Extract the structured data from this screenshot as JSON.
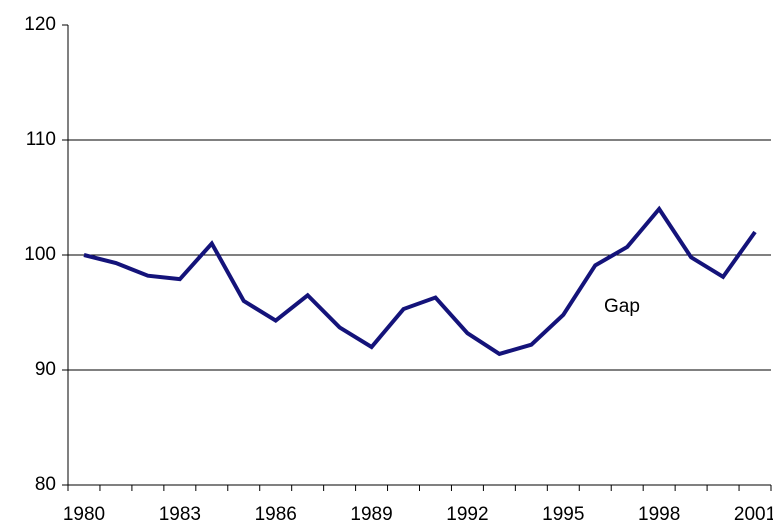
{
  "chart_data": {
    "type": "line",
    "categories": [
      "1980",
      null,
      null,
      "1983",
      null,
      null,
      "1986",
      null,
      null,
      "1989",
      null,
      null,
      "1992",
      null,
      null,
      "1995",
      null,
      null,
      "1998",
      null,
      null,
      "2001"
    ],
    "series": [
      {
        "color": "#14137a",
        "values": [
          100,
          99.3,
          98.2,
          97.9,
          101,
          96,
          94.3,
          96.5,
          93.7,
          92,
          95.3,
          96.3,
          93.2,
          91.4,
          92.2,
          94.8,
          99.1,
          100.7,
          104,
          99.8,
          98.1,
          102
        ]
      }
    ],
    "annotation": "Gap",
    "ylim": [
      80,
      120
    ],
    "yticks": [
      80,
      90,
      100,
      110,
      120
    ],
    "grid": true
  }
}
